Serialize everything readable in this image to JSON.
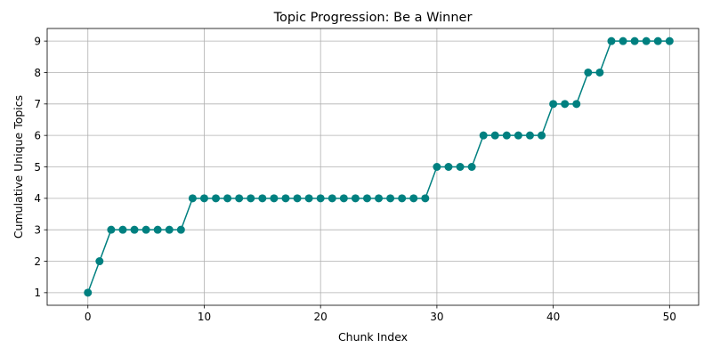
{
  "chart_data": {
    "type": "line",
    "title": "Topic Progression: Be a Winner",
    "xlabel": "Chunk Index",
    "ylabel": "Cumulative Unique Topics",
    "xlim": [
      -3.5,
      52.5
    ],
    "ylim": [
      0.6,
      9.4
    ],
    "xticks": [
      0,
      10,
      20,
      30,
      40,
      50
    ],
    "yticks": [
      1,
      2,
      3,
      4,
      5,
      6,
      7,
      8,
      9
    ],
    "grid": true,
    "marker": "circle",
    "series": [
      {
        "color": "#008080",
        "x": [
          0,
          1,
          2,
          3,
          4,
          5,
          6,
          7,
          8,
          9,
          10,
          11,
          12,
          13,
          14,
          15,
          16,
          17,
          18,
          19,
          20,
          21,
          22,
          23,
          24,
          25,
          26,
          27,
          28,
          29,
          30,
          31,
          32,
          33,
          34,
          35,
          36,
          37,
          38,
          39,
          40,
          41,
          42,
          43,
          44,
          45,
          46,
          47,
          48,
          49,
          50
        ],
        "y": [
          1,
          2,
          3,
          3,
          3,
          3,
          3,
          3,
          3,
          4,
          4,
          4,
          4,
          4,
          4,
          4,
          4,
          4,
          4,
          4,
          4,
          4,
          4,
          4,
          4,
          4,
          4,
          4,
          4,
          4,
          5,
          5,
          5,
          5,
          6,
          6,
          6,
          6,
          6,
          6,
          7,
          7,
          7,
          8,
          8,
          9,
          9,
          9,
          9,
          9,
          9
        ]
      }
    ]
  }
}
